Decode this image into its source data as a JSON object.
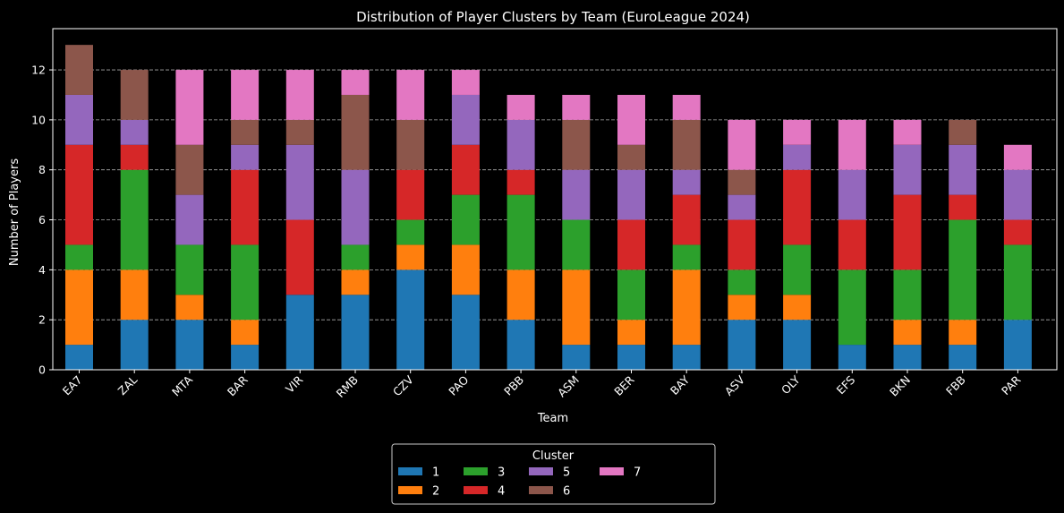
{
  "chart_data": {
    "type": "bar",
    "stacked": true,
    "title": "Distribution of Player Clusters by Team (EuroLeague 2024)",
    "xlabel": "Team",
    "ylabel": "Number of Players",
    "ylim": [
      0,
      13.65
    ],
    "yticks": [
      0,
      2,
      4,
      6,
      8,
      10,
      12
    ],
    "grid": "y-dashed",
    "legend_title": "Cluster",
    "legend_placement": "bottom-center",
    "categories": [
      "EA7",
      "ZAL",
      "MTA",
      "BAR",
      "VIR",
      "RMB",
      "CZV",
      "PAO",
      "PBB",
      "ASM",
      "BER",
      "BAY",
      "ASV",
      "OLY",
      "EFS",
      "BKN",
      "FBB",
      "PAR"
    ],
    "series": [
      {
        "name": "1",
        "color": "#1f77b4",
        "values": [
          1,
          2,
          2,
          1,
          3,
          3,
          4,
          3,
          2,
          1,
          1,
          1,
          2,
          2,
          1,
          1,
          1,
          2
        ]
      },
      {
        "name": "2",
        "color": "#ff7f0e",
        "values": [
          3,
          2,
          1,
          1,
          0,
          1,
          1,
          2,
          2,
          3,
          1,
          3,
          1,
          1,
          0,
          1,
          1,
          0
        ]
      },
      {
        "name": "3",
        "color": "#2ca02c",
        "values": [
          1,
          4,
          2,
          3,
          0,
          1,
          1,
          2,
          3,
          2,
          2,
          1,
          1,
          2,
          3,
          2,
          4,
          3
        ]
      },
      {
        "name": "4",
        "color": "#d62728",
        "values": [
          4,
          1,
          0,
          3,
          3,
          0,
          2,
          2,
          1,
          0,
          2,
          2,
          2,
          3,
          2,
          3,
          1,
          1
        ]
      },
      {
        "name": "5",
        "color": "#9467bd",
        "values": [
          2,
          1,
          2,
          1,
          3,
          3,
          0,
          2,
          2,
          2,
          2,
          1,
          1,
          1,
          2,
          2,
          2,
          2
        ]
      },
      {
        "name": "6",
        "color": "#8c564b",
        "values": [
          2,
          2,
          2,
          1,
          1,
          3,
          2,
          0,
          0,
          2,
          1,
          2,
          1,
          0,
          0,
          0,
          1,
          0
        ]
      },
      {
        "name": "7",
        "color": "#e377c2",
        "values": [
          0,
          0,
          3,
          2,
          2,
          1,
          2,
          1,
          1,
          1,
          2,
          1,
          2,
          1,
          2,
          1,
          0,
          1
        ]
      }
    ]
  }
}
